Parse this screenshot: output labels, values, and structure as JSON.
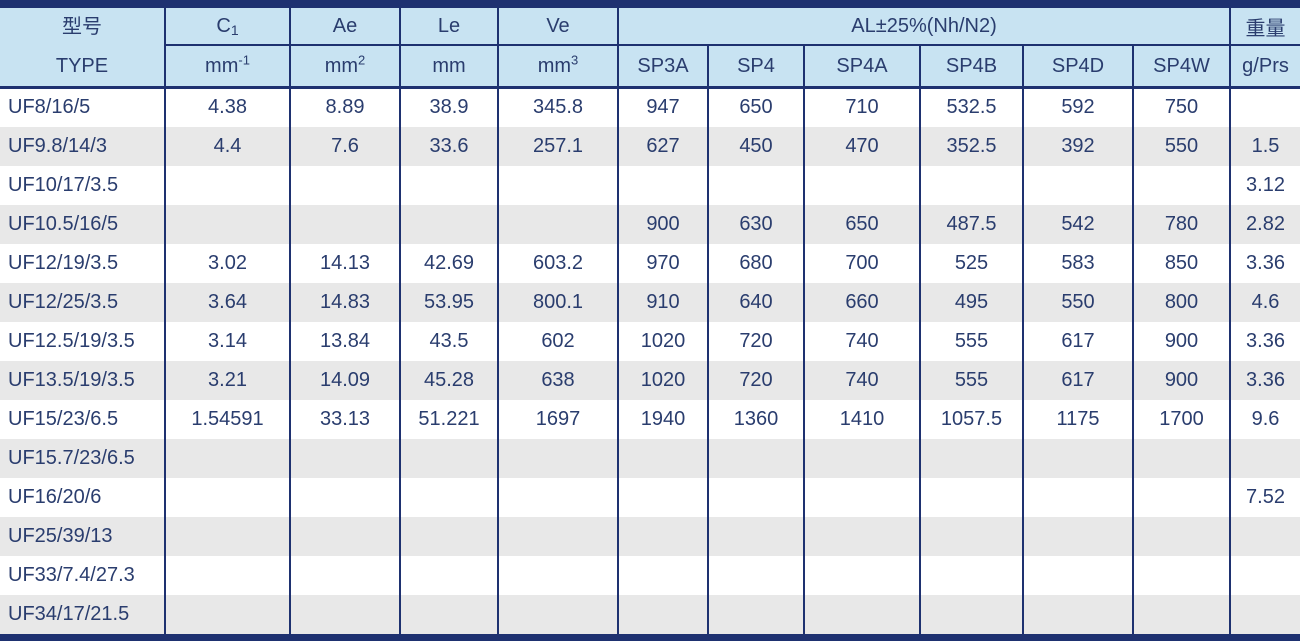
{
  "colors": {
    "navy": "#1e3170",
    "header_bg": "#c8e3f2",
    "stripe": "#e8e8e8",
    "text": "#2a3d6e"
  },
  "table": {
    "header": {
      "type_cn": "型号",
      "type_en": "TYPE",
      "c1_label": {
        "base": "C",
        "sub": "1"
      },
      "ae_label": "Ae",
      "le_label": "Le",
      "ve_label": "Ve",
      "al_group": "AL±25%(Nh/N2)",
      "weight_cn": "重量",
      "weight_unit": "g/Prs",
      "sp_columns": [
        "SP3A",
        "SP4",
        "SP4A",
        "SP4B",
        "SP4D",
        "SP4W"
      ],
      "units": {
        "c1": {
          "base": "mm",
          "sup": "-1"
        },
        "ae": {
          "base": "mm",
          "sup": "2"
        },
        "le": {
          "base": "mm",
          "sup": ""
        },
        "ve": {
          "base": "mm",
          "sup": "3"
        }
      }
    },
    "rows": [
      {
        "type": "UF8/16/5",
        "c1": "4.38",
        "ae": "8.89",
        "le": "38.9",
        "ve": "345.8",
        "sp3a": "947",
        "sp4": "650",
        "sp4a": "710",
        "sp4b": "532.5",
        "sp4d": "592",
        "sp4w": "750",
        "weight": ""
      },
      {
        "type": "UF9.8/14/3",
        "c1": "4.4",
        "ae": "7.6",
        "le": "33.6",
        "ve": "257.1",
        "sp3a": "627",
        "sp4": "450",
        "sp4a": "470",
        "sp4b": "352.5",
        "sp4d": "392",
        "sp4w": "550",
        "weight": "1.5"
      },
      {
        "type": "UF10/17/3.5",
        "c1": "",
        "ae": "",
        "le": "",
        "ve": "",
        "sp3a": "",
        "sp4": "",
        "sp4a": "",
        "sp4b": "",
        "sp4d": "",
        "sp4w": "",
        "weight": "3.12"
      },
      {
        "type": "UF10.5/16/5",
        "c1": "",
        "ae": "",
        "le": "",
        "ve": "",
        "sp3a": "900",
        "sp4": "630",
        "sp4a": "650",
        "sp4b": "487.5",
        "sp4d": "542",
        "sp4w": "780",
        "weight": "2.82"
      },
      {
        "type": "UF12/19/3.5",
        "c1": "3.02",
        "ae": "14.13",
        "le": "42.69",
        "ve": "603.2",
        "sp3a": "970",
        "sp4": "680",
        "sp4a": "700",
        "sp4b": "525",
        "sp4d": "583",
        "sp4w": "850",
        "weight": "3.36"
      },
      {
        "type": "UF12/25/3.5",
        "c1": "3.64",
        "ae": "14.83",
        "le": "53.95",
        "ve": "800.1",
        "sp3a": "910",
        "sp4": "640",
        "sp4a": "660",
        "sp4b": "495",
        "sp4d": "550",
        "sp4w": "800",
        "weight": "4.6"
      },
      {
        "type": "UF12.5/19/3.5",
        "c1": "3.14",
        "ae": "13.84",
        "le": "43.5",
        "ve": "602",
        "sp3a": "1020",
        "sp4": "720",
        "sp4a": "740",
        "sp4b": "555",
        "sp4d": "617",
        "sp4w": "900",
        "weight": "3.36"
      },
      {
        "type": "UF13.5/19/3.5",
        "c1": "3.21",
        "ae": "14.09",
        "le": "45.28",
        "ve": "638",
        "sp3a": "1020",
        "sp4": "720",
        "sp4a": "740",
        "sp4b": "555",
        "sp4d": "617",
        "sp4w": "900",
        "weight": "3.36"
      },
      {
        "type": "UF15/23/6.5",
        "c1": "1.54591",
        "ae": "33.13",
        "le": "51.221",
        "ve": "1697",
        "sp3a": "1940",
        "sp4": "1360",
        "sp4a": "1410",
        "sp4b": "1057.5",
        "sp4d": "1175",
        "sp4w": "1700",
        "weight": "9.6"
      },
      {
        "type": "UF15.7/23/6.5",
        "c1": "",
        "ae": "",
        "le": "",
        "ve": "",
        "sp3a": "",
        "sp4": "",
        "sp4a": "",
        "sp4b": "",
        "sp4d": "",
        "sp4w": "",
        "weight": ""
      },
      {
        "type": "UF16/20/6",
        "c1": "",
        "ae": "",
        "le": "",
        "ve": "",
        "sp3a": "",
        "sp4": "",
        "sp4a": "",
        "sp4b": "",
        "sp4d": "",
        "sp4w": "",
        "weight": "7.52"
      },
      {
        "type": "UF25/39/13",
        "c1": "",
        "ae": "",
        "le": "",
        "ve": "",
        "sp3a": "",
        "sp4": "",
        "sp4a": "",
        "sp4b": "",
        "sp4d": "",
        "sp4w": "",
        "weight": ""
      },
      {
        "type": "UF33/7.4/27.3",
        "c1": "",
        "ae": "",
        "le": "",
        "ve": "",
        "sp3a": "",
        "sp4": "",
        "sp4a": "",
        "sp4b": "",
        "sp4d": "",
        "sp4w": "",
        "weight": ""
      },
      {
        "type": "UF34/17/21.5",
        "c1": "",
        "ae": "",
        "le": "",
        "ve": "",
        "sp3a": "",
        "sp4": "",
        "sp4a": "",
        "sp4b": "",
        "sp4d": "",
        "sp4w": "",
        "weight": ""
      }
    ]
  }
}
